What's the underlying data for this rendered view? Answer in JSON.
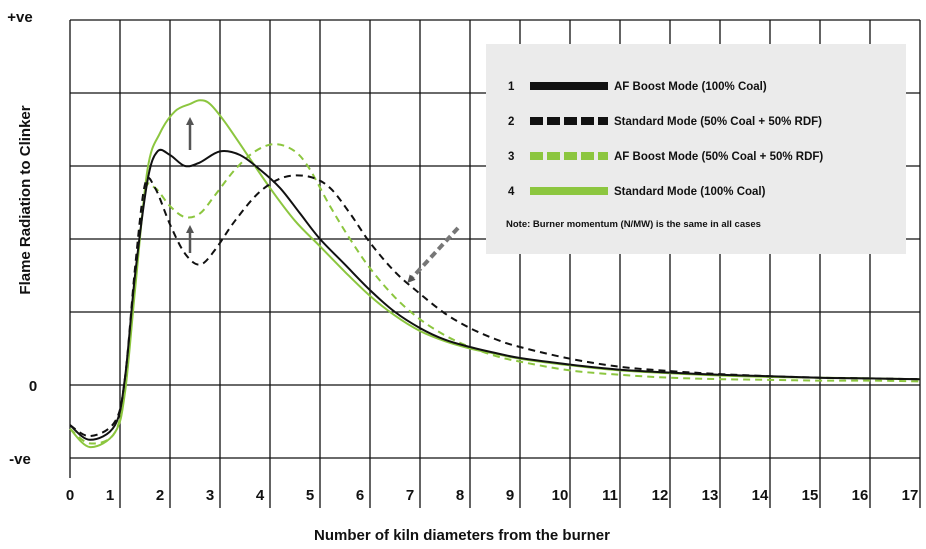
{
  "chart_data": {
    "type": "line",
    "xlabel": "Number of kiln diameters from the burner",
    "ylabel": "Flame Radiation to Clinker",
    "xlim": [
      0,
      17
    ],
    "x_ticks": [
      "0",
      "1",
      "2",
      "3",
      "4",
      "5",
      "6",
      "7",
      "8",
      "9",
      "10",
      "11",
      "12",
      "13",
      "14",
      "15",
      "16",
      "17"
    ],
    "y_tick_labels": [
      {
        "label": "+ve",
        "value": 5
      },
      {
        "label": "0",
        "value": 0
      },
      {
        "label": "-ve",
        "value": -1
      }
    ],
    "ylim": [
      -1,
      5
    ],
    "grid": true,
    "legend_position": "top-right",
    "legend_note": "Note: Burner momentum (N/MW) is the same in all cases",
    "colors": {
      "black": "#111111",
      "green": "#8cc63f"
    },
    "series": [
      {
        "number": "1",
        "name": "AF Boost Mode (100% Coal)",
        "color": "#111111",
        "dash": "solid",
        "x": [
          0,
          0.4,
          0.9,
          1.1,
          1.3,
          1.55,
          1.75,
          2.0,
          2.3,
          2.6,
          3.0,
          3.4,
          3.8,
          4.2,
          4.6,
          5.0,
          5.5,
          6.0,
          6.5,
          7.0,
          7.5,
          8.0,
          8.5,
          9.0,
          10.0,
          11.0,
          12.0,
          13.0,
          14.0,
          15.0,
          16.0,
          17.0
        ],
        "y": [
          -0.55,
          -0.75,
          -0.55,
          0.1,
          1.5,
          2.8,
          3.2,
          3.15,
          3.0,
          3.05,
          3.2,
          3.15,
          2.95,
          2.7,
          2.35,
          2.0,
          1.65,
          1.3,
          1.0,
          0.78,
          0.62,
          0.52,
          0.44,
          0.37,
          0.28,
          0.21,
          0.17,
          0.14,
          0.12,
          0.1,
          0.09,
          0.08
        ]
      },
      {
        "number": "2",
        "name": "Standard Mode (50% Coal + 50% RDF)",
        "color": "#111111",
        "dash": "dashed",
        "x": [
          0,
          0.4,
          0.9,
          1.1,
          1.3,
          1.5,
          1.7,
          2.0,
          2.3,
          2.6,
          2.9,
          3.3,
          3.8,
          4.3,
          4.8,
          5.2,
          5.6,
          6.0,
          6.5,
          7.0,
          7.5,
          8.0,
          8.5,
          9.0,
          10.0,
          11.0,
          12.0,
          13.0,
          14.0,
          15.0,
          16.0,
          17.0
        ],
        "y": [
          -0.55,
          -0.7,
          -0.5,
          0.1,
          1.6,
          2.75,
          2.7,
          2.2,
          1.8,
          1.65,
          1.85,
          2.25,
          2.65,
          2.85,
          2.85,
          2.7,
          2.35,
          1.95,
          1.55,
          1.25,
          0.98,
          0.78,
          0.63,
          0.52,
          0.36,
          0.25,
          0.19,
          0.15,
          0.12,
          0.1,
          0.09,
          0.08
        ]
      },
      {
        "number": "3",
        "name": "AF Boost Mode (50% Coal + 50% RDF)",
        "color": "#8cc63f",
        "dash": "dashed",
        "x": [
          0,
          0.4,
          0.9,
          1.1,
          1.3,
          1.5,
          1.7,
          2.0,
          2.3,
          2.6,
          2.9,
          3.3,
          3.7,
          4.1,
          4.5,
          4.8,
          5.2,
          5.6,
          6.0,
          6.5,
          7.0,
          7.5,
          8.0,
          8.5,
          9.0,
          10.0,
          11.0,
          12.0,
          13.0,
          14.0,
          15.0,
          16.0,
          17.0
        ],
        "y": [
          -0.6,
          -0.8,
          -0.65,
          0.05,
          1.5,
          2.65,
          2.7,
          2.45,
          2.3,
          2.35,
          2.6,
          2.95,
          3.2,
          3.3,
          3.2,
          2.95,
          2.45,
          2.0,
          1.6,
          1.2,
          0.9,
          0.68,
          0.52,
          0.4,
          0.32,
          0.2,
          0.14,
          0.1,
          0.08,
          0.07,
          0.06,
          0.06,
          0.05
        ]
      },
      {
        "number": "4",
        "name": "Standard Mode (100% Coal)",
        "color": "#8cc63f",
        "dash": "solid",
        "x": [
          0,
          0.4,
          0.9,
          1.1,
          1.3,
          1.55,
          1.8,
          2.1,
          2.4,
          2.6,
          2.8,
          3.1,
          3.5,
          4.0,
          4.5,
          5.0,
          5.5,
          6.0,
          6.5,
          7.0,
          7.5,
          8.0,
          8.5,
          9.0,
          10.0,
          11.0,
          12.0,
          13.0,
          14.0,
          15.0,
          16.0,
          17.0
        ],
        "y": [
          -0.6,
          -0.85,
          -0.65,
          -0.1,
          1.3,
          2.95,
          3.45,
          3.75,
          3.85,
          3.9,
          3.85,
          3.6,
          3.2,
          2.7,
          2.25,
          1.9,
          1.55,
          1.22,
          0.95,
          0.74,
          0.6,
          0.5,
          0.43,
          0.36,
          0.27,
          0.2,
          0.16,
          0.13,
          0.11,
          0.1,
          0.09,
          0.08
        ]
      }
    ]
  }
}
